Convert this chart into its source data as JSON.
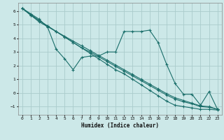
{
  "title": "",
  "xlabel": "Humidex (Indice chaleur)",
  "ylabel": "",
  "bg_color": "#cce8e8",
  "grid_color": "#aacccc",
  "line_color": "#1a6e6a",
  "xlim": [
    -0.5,
    23.5
  ],
  "ylim": [
    -1.6,
    6.6
  ],
  "xticks": [
    0,
    1,
    2,
    3,
    4,
    5,
    6,
    7,
    8,
    9,
    10,
    11,
    12,
    13,
    14,
    15,
    16,
    17,
    18,
    19,
    20,
    21,
    22,
    23
  ],
  "yticks": [
    -1,
    0,
    1,
    2,
    3,
    4,
    5,
    6
  ],
  "series": [
    [
      6.2,
      5.8,
      5.4,
      4.8,
      3.2,
      2.5,
      1.7,
      2.6,
      2.7,
      2.7,
      3.0,
      3.0,
      4.5,
      4.5,
      4.5,
      4.6,
      3.7,
      2.1,
      0.7,
      -0.1,
      -0.1,
      -0.9,
      0.1,
      -1.2
    ],
    [
      6.2,
      5.7,
      5.3,
      4.9,
      4.5,
      4.1,
      3.7,
      3.3,
      2.9,
      2.5,
      2.1,
      1.7,
      1.4,
      1.0,
      0.6,
      0.2,
      -0.2,
      -0.6,
      -0.9,
      -1.0,
      -1.1,
      -1.2,
      -1.2,
      -1.25
    ],
    [
      6.2,
      5.7,
      5.2,
      4.85,
      4.5,
      4.15,
      3.8,
      3.45,
      3.1,
      2.75,
      2.4,
      2.05,
      1.7,
      1.35,
      1.0,
      0.65,
      0.3,
      -0.05,
      -0.35,
      -0.55,
      -0.75,
      -0.95,
      -1.0,
      -1.2
    ],
    [
      6.2,
      5.75,
      5.3,
      4.9,
      4.5,
      4.1,
      3.7,
      3.3,
      3.0,
      2.65,
      2.3,
      1.95,
      1.6,
      1.25,
      0.9,
      0.55,
      0.2,
      -0.15,
      -0.45,
      -0.65,
      -0.8,
      -1.0,
      -1.05,
      -1.2
    ]
  ],
  "figsize": [
    3.2,
    2.0
  ],
  "dpi": 100
}
